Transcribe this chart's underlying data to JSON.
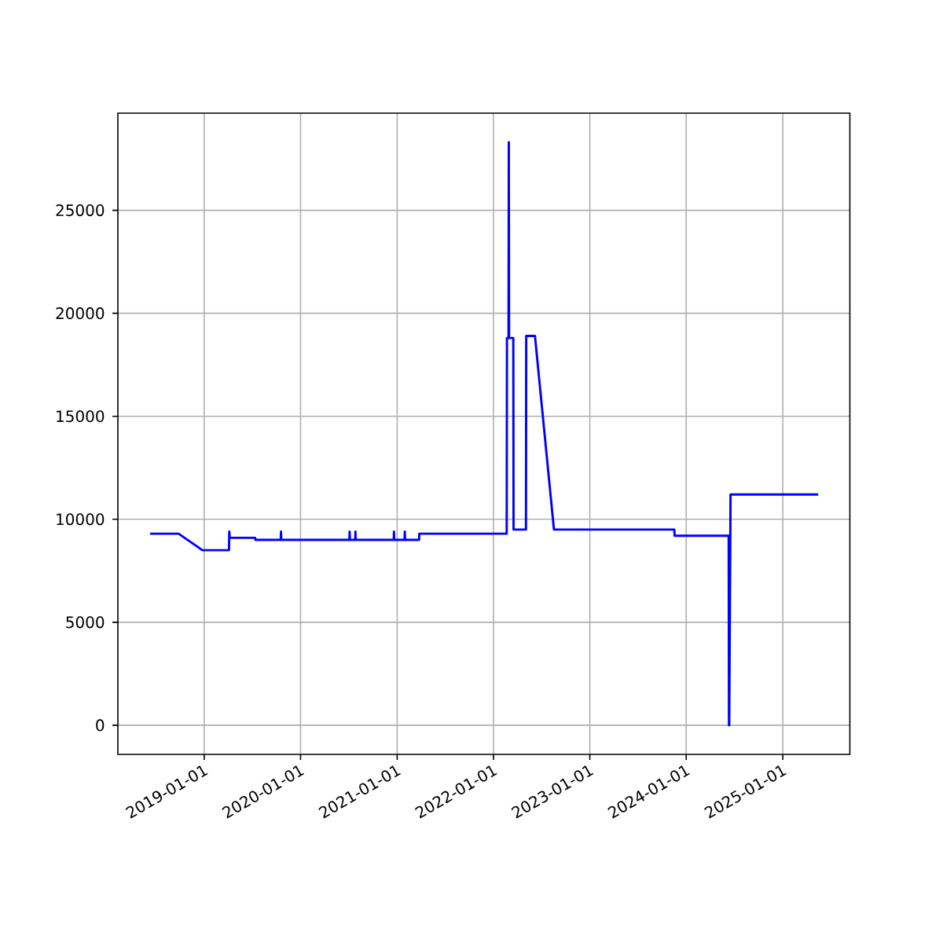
{
  "chart_data": {
    "type": "line",
    "color": "#0000ff",
    "grid": true,
    "marker": "none",
    "line_style": "solid",
    "x": [
      "2018-06-10",
      "2018-09-26",
      "2018-12-25",
      "2019-04-05",
      "2019-04-06",
      "2019-04-08",
      "2019-07-13",
      "2019-07-14",
      "2019-10-18",
      "2019-10-19",
      "2019-10-20",
      "2020-07-04",
      "2020-07-05",
      "2020-07-06",
      "2020-07-26",
      "2020-07-27",
      "2020-07-28",
      "2020-12-19",
      "2020-12-20",
      "2020-12-21",
      "2021-01-29",
      "2021-01-30",
      "2021-01-31",
      "2021-03-25",
      "2021-03-26",
      "2022-02-20",
      "2022-02-21",
      "2022-02-27",
      "2022-02-28",
      "2022-03-01",
      "2022-03-17",
      "2022-03-18",
      "2022-05-04",
      "2022-05-05",
      "2022-06-07",
      "2022-08-18",
      "2023-11-17",
      "2023-11-18",
      "2024-06-10",
      "2024-06-11",
      "2024-06-12",
      "2024-06-17",
      "2025-05-15"
    ],
    "values": [
      9300,
      9300,
      8500,
      8500,
      9400,
      9100,
      9100,
      9000,
      9000,
      9400,
      9000,
      9000,
      9400,
      9000,
      9000,
      9400,
      9000,
      9000,
      9400,
      9000,
      9000,
      9400,
      9000,
      9000,
      9300,
      9300,
      18800,
      18800,
      28300,
      18800,
      18800,
      9500,
      9500,
      18900,
      18900,
      9500,
      9500,
      9200,
      9200,
      0,
      0,
      11200,
      11200
    ],
    "xlim": [
      "2018-02-08",
      "2025-09-12"
    ],
    "xticks": [
      "2019-01-01",
      "2020-01-01",
      "2021-01-01",
      "2022-01-01",
      "2023-01-01",
      "2024-01-01",
      "2025-01-01"
    ],
    "ylim": [
      -1415,
      29715
    ],
    "yticks": [
      0,
      5000,
      10000,
      15000,
      20000,
      25000
    ]
  }
}
